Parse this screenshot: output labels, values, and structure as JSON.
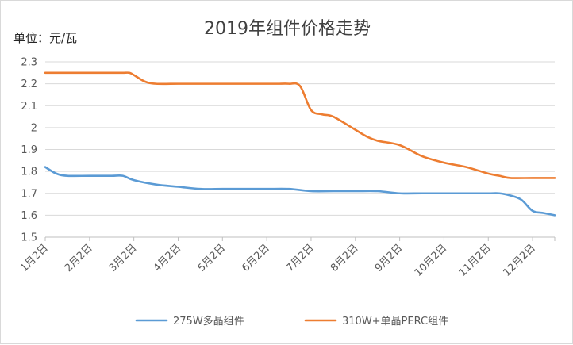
{
  "chart_data": {
    "type": "line",
    "title": "2019年组件价格走势",
    "ylabel": "单位：元/瓦",
    "xlabel": "",
    "ylim": [
      1.5,
      2.3
    ],
    "yticks": [
      "1.5",
      "1.6",
      "1.7",
      "1.8",
      "1.9",
      "2",
      "2.1",
      "2.2",
      "2.3"
    ],
    "ytick_values": [
      1.5,
      1.6,
      1.7,
      1.8,
      1.9,
      2.0,
      2.1,
      2.2,
      2.3
    ],
    "categories": [
      "1月2日",
      "2月2日",
      "3月2日",
      "4月2日",
      "5月2日",
      "6月2日",
      "7月2日",
      "8月2日",
      "9月2日",
      "10月2日",
      "11月2日",
      "12月2日"
    ],
    "x_range_months": [
      0,
      11.5
    ],
    "grid": "horizontal",
    "legend_position": "bottom",
    "series": [
      {
        "name": "275W多晶组件",
        "color": "#5b9bd5",
        "points": [
          [
            0.0,
            1.82
          ],
          [
            0.25,
            1.79
          ],
          [
            0.5,
            1.78
          ],
          [
            1.0,
            1.78
          ],
          [
            1.5,
            1.78
          ],
          [
            1.75,
            1.78
          ],
          [
            2.0,
            1.76
          ],
          [
            2.5,
            1.74
          ],
          [
            3.0,
            1.73
          ],
          [
            3.5,
            1.72
          ],
          [
            4.0,
            1.72
          ],
          [
            4.5,
            1.72
          ],
          [
            5.0,
            1.72
          ],
          [
            5.5,
            1.72
          ],
          [
            6.0,
            1.71
          ],
          [
            6.5,
            1.71
          ],
          [
            7.0,
            1.71
          ],
          [
            7.5,
            1.71
          ],
          [
            8.0,
            1.7
          ],
          [
            8.5,
            1.7
          ],
          [
            9.0,
            1.7
          ],
          [
            9.5,
            1.7
          ],
          [
            10.0,
            1.7
          ],
          [
            10.25,
            1.7
          ],
          [
            10.5,
            1.69
          ],
          [
            10.75,
            1.67
          ],
          [
            11.0,
            1.62
          ],
          [
            11.25,
            1.61
          ],
          [
            11.5,
            1.6
          ]
        ]
      },
      {
        "name": "310W+单晶PERC组件",
        "color": "#ed7d31",
        "points": [
          [
            0.0,
            2.25
          ],
          [
            0.5,
            2.25
          ],
          [
            1.0,
            2.25
          ],
          [
            1.5,
            2.25
          ],
          [
            1.75,
            2.25
          ],
          [
            1.9,
            2.25
          ],
          [
            2.0,
            2.24
          ],
          [
            2.25,
            2.21
          ],
          [
            2.5,
            2.2
          ],
          [
            3.0,
            2.2
          ],
          [
            3.5,
            2.2
          ],
          [
            4.0,
            2.2
          ],
          [
            4.5,
            2.2
          ],
          [
            5.0,
            2.2
          ],
          [
            5.25,
            2.2
          ],
          [
            5.5,
            2.2
          ],
          [
            5.75,
            2.19
          ],
          [
            6.0,
            2.08
          ],
          [
            6.25,
            2.06
          ],
          [
            6.5,
            2.05
          ],
          [
            7.0,
            1.99
          ],
          [
            7.25,
            1.96
          ],
          [
            7.5,
            1.94
          ],
          [
            8.0,
            1.92
          ],
          [
            8.5,
            1.87
          ],
          [
            9.0,
            1.84
          ],
          [
            9.5,
            1.82
          ],
          [
            10.0,
            1.79
          ],
          [
            10.25,
            1.78
          ],
          [
            10.5,
            1.77
          ],
          [
            11.0,
            1.77
          ],
          [
            11.5,
            1.77
          ]
        ]
      }
    ]
  }
}
